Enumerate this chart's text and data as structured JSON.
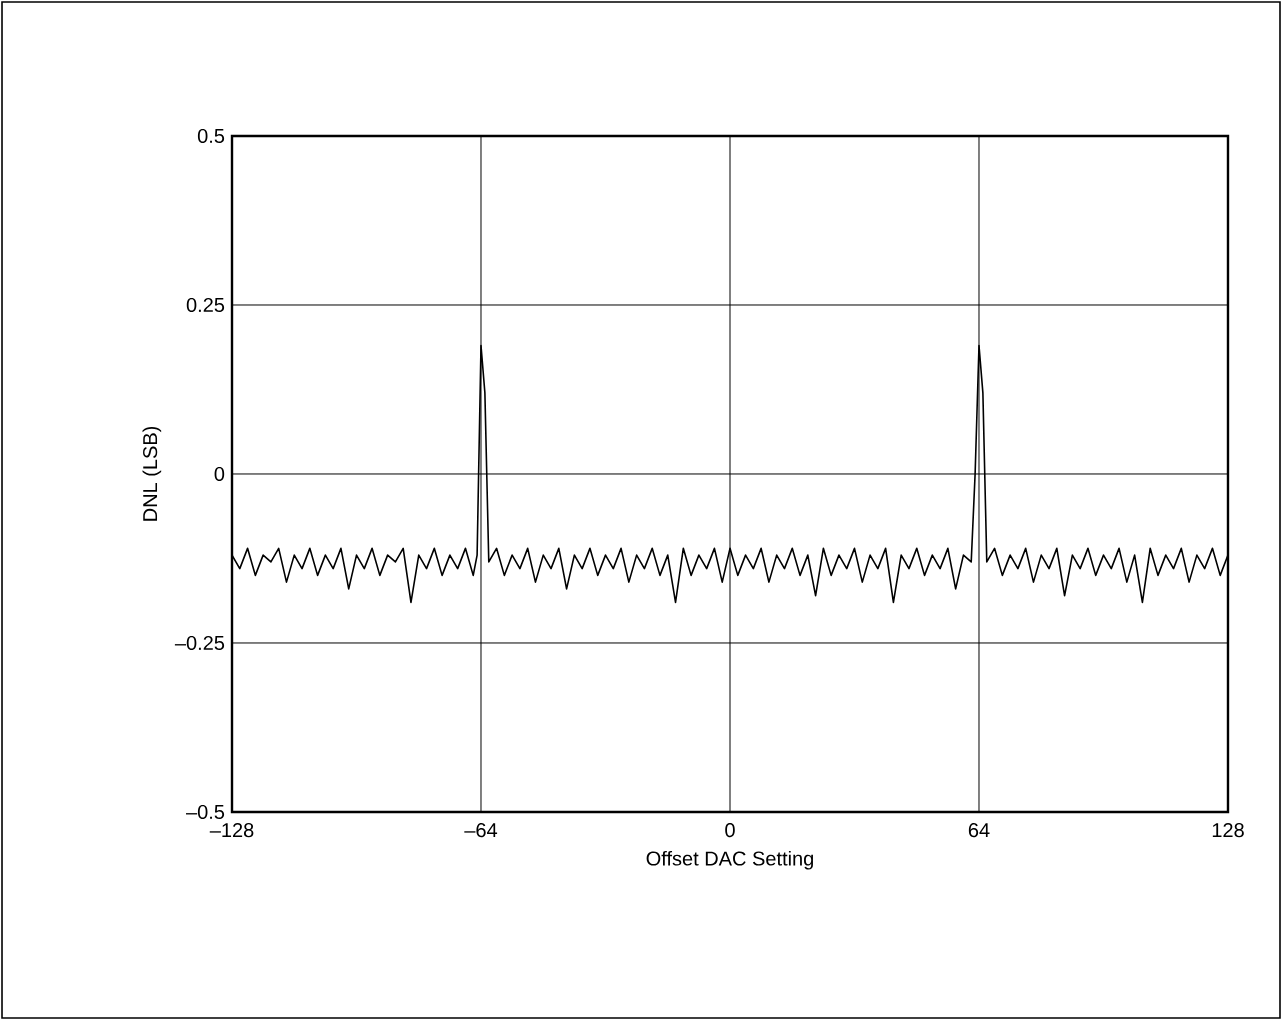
{
  "chart_data": {
    "type": "line",
    "xlabel": "Offset DAC Setting",
    "ylabel": "DNL (LSB)",
    "xlim": [
      -128,
      128
    ],
    "ylim": [
      -0.5,
      0.5
    ],
    "xticks": [
      {
        "value": -128,
        "label": "–128"
      },
      {
        "value": -64,
        "label": "–64"
      },
      0,
      64,
      128
    ],
    "yticks": [
      {
        "value": -0.5,
        "label": "–0.5"
      },
      {
        "value": -0.25,
        "label": "–0.25"
      },
      0,
      0.25,
      0.5
    ],
    "grid": true,
    "series": [
      {
        "color": "#000000",
        "x": [
          -128,
          -126,
          -124,
          -122,
          -120,
          -118,
          -116,
          -114,
          -112,
          -110,
          -108,
          -106,
          -104,
          -102,
          -100,
          -98,
          -96,
          -94,
          -92,
          -90,
          -88,
          -86,
          -84,
          -82,
          -80,
          -78,
          -76,
          -74,
          -72,
          -70,
          -68,
          -66,
          -65,
          -64,
          -63,
          -62,
          -60,
          -58,
          -56,
          -54,
          -52,
          -50,
          -48,
          -46,
          -44,
          -42,
          -40,
          -38,
          -36,
          -34,
          -32,
          -30,
          -28,
          -26,
          -24,
          -22,
          -20,
          -18,
          -16,
          -14,
          -12,
          -10,
          -8,
          -6,
          -4,
          -2,
          0,
          2,
          4,
          6,
          8,
          10,
          12,
          14,
          16,
          18,
          20,
          22,
          24,
          26,
          28,
          30,
          32,
          34,
          36,
          38,
          40,
          42,
          44,
          46,
          48,
          50,
          52,
          54,
          56,
          58,
          60,
          62,
          63,
          64,
          65,
          66,
          68,
          70,
          72,
          74,
          76,
          78,
          80,
          82,
          84,
          86,
          88,
          90,
          92,
          94,
          96,
          98,
          100,
          102,
          104,
          106,
          108,
          110,
          112,
          114,
          116,
          118,
          120,
          122,
          124,
          126,
          128
        ],
        "values": [
          -0.12,
          -0.14,
          -0.11,
          -0.15,
          -0.12,
          -0.13,
          -0.11,
          -0.16,
          -0.12,
          -0.14,
          -0.11,
          -0.15,
          -0.12,
          -0.14,
          -0.11,
          -0.17,
          -0.12,
          -0.14,
          -0.11,
          -0.15,
          -0.12,
          -0.13,
          -0.11,
          -0.19,
          -0.12,
          -0.14,
          -0.11,
          -0.15,
          -0.12,
          -0.14,
          -0.11,
          -0.15,
          -0.12,
          0.19,
          0.12,
          -0.13,
          -0.11,
          -0.15,
          -0.12,
          -0.14,
          -0.11,
          -0.16,
          -0.12,
          -0.14,
          -0.11,
          -0.17,
          -0.12,
          -0.14,
          -0.11,
          -0.15,
          -0.12,
          -0.14,
          -0.11,
          -0.16,
          -0.12,
          -0.14,
          -0.11,
          -0.15,
          -0.12,
          -0.19,
          -0.11,
          -0.15,
          -0.12,
          -0.14,
          -0.11,
          -0.16,
          -0.11,
          -0.15,
          -0.12,
          -0.14,
          -0.11,
          -0.16,
          -0.12,
          -0.14,
          -0.11,
          -0.15,
          -0.12,
          -0.18,
          -0.11,
          -0.15,
          -0.12,
          -0.14,
          -0.11,
          -0.16,
          -0.12,
          -0.14,
          -0.11,
          -0.19,
          -0.12,
          -0.14,
          -0.11,
          -0.15,
          -0.12,
          -0.14,
          -0.11,
          -0.17,
          -0.12,
          -0.13,
          0.0,
          0.19,
          0.12,
          -0.13,
          -0.11,
          -0.15,
          -0.12,
          -0.14,
          -0.11,
          -0.16,
          -0.12,
          -0.14,
          -0.11,
          -0.18,
          -0.12,
          -0.14,
          -0.11,
          -0.15,
          -0.12,
          -0.14,
          -0.11,
          -0.16,
          -0.12,
          -0.19,
          -0.11,
          -0.15,
          -0.12,
          -0.14,
          -0.11,
          -0.16,
          -0.12,
          -0.14,
          -0.11,
          -0.15,
          -0.12
        ]
      }
    ]
  }
}
